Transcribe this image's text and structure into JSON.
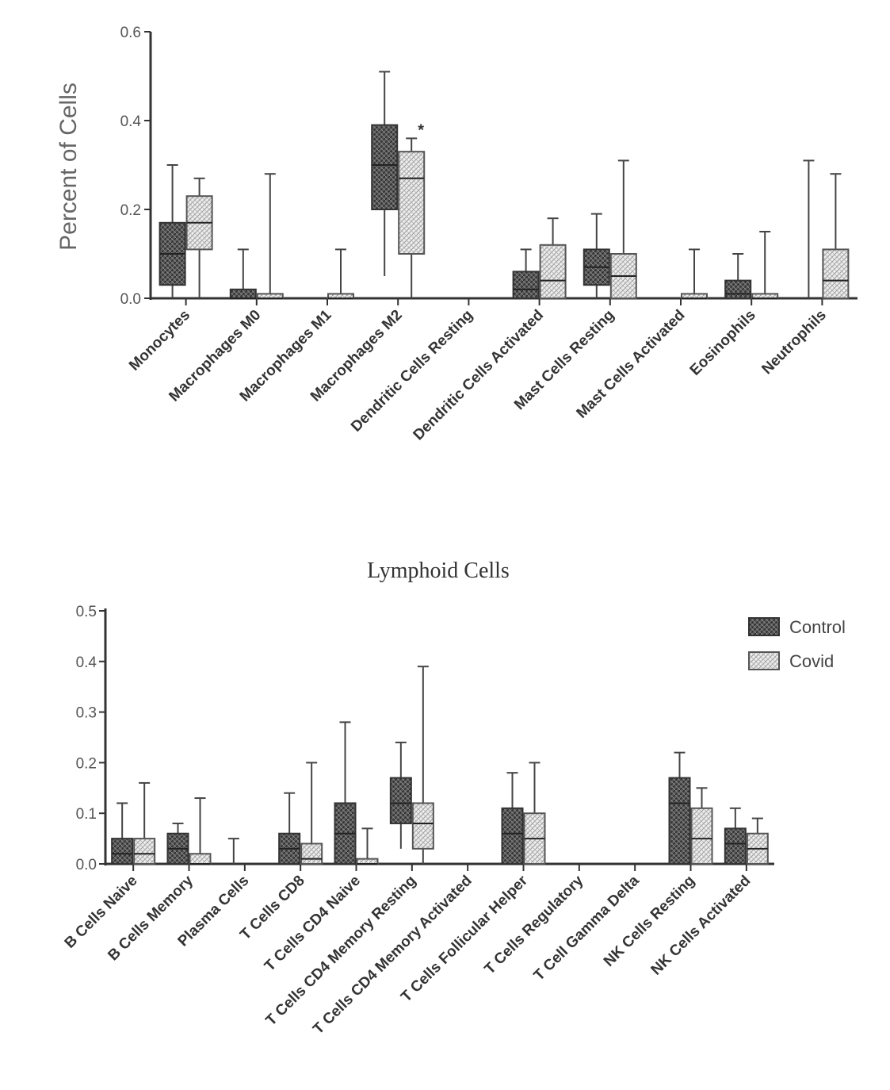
{
  "chart_data": [
    {
      "type": "box",
      "title": "",
      "xlabel": "",
      "ylabel": "Percent of Cells",
      "ylim": [
        0,
        0.6
      ],
      "yticks": [
        "0.0",
        "0.2",
        "0.4",
        "0.6"
      ],
      "ytick_values": [
        0,
        0.2,
        0.4,
        0.6
      ],
      "categories": [
        "Monocytes",
        "Macrophages M0",
        "Macrophages M1",
        "Macrophages M2",
        "Dendritic Cells Resting",
        "Dendritic Cells Activated",
        "Mast Cells Resting",
        "Mast Cells Activated",
        "Eosinophils",
        "Neutrophils"
      ],
      "series": [
        {
          "name": "Control",
          "boxes": [
            {
              "min": 0.0,
              "q1": 0.03,
              "median": 0.1,
              "q3": 0.17,
              "max": 0.3
            },
            {
              "min": 0.0,
              "q1": 0.0,
              "median": 0.0,
              "q3": 0.02,
              "max": 0.11
            },
            {
              "min": 0.0,
              "q1": 0.0,
              "median": 0.0,
              "q3": 0.0,
              "max": 0.0
            },
            {
              "min": 0.05,
              "q1": 0.2,
              "median": 0.3,
              "q3": 0.39,
              "max": 0.51
            },
            {
              "min": 0.0,
              "q1": 0.0,
              "median": 0.0,
              "q3": 0.0,
              "max": 0.0
            },
            {
              "min": 0.0,
              "q1": 0.0,
              "median": 0.02,
              "q3": 0.06,
              "max": 0.11
            },
            {
              "min": 0.0,
              "q1": 0.03,
              "median": 0.07,
              "q3": 0.11,
              "max": 0.19
            },
            {
              "min": 0.0,
              "q1": 0.0,
              "median": 0.0,
              "q3": 0.0,
              "max": 0.0
            },
            {
              "min": 0.0,
              "q1": 0.0,
              "median": 0.01,
              "q3": 0.04,
              "max": 0.1
            },
            {
              "min": 0.0,
              "q1": 0.0,
              "median": 0.0,
              "q3": 0.0,
              "max": 0.31
            }
          ]
        },
        {
          "name": "Covid",
          "boxes": [
            {
              "min": 0.0,
              "q1": 0.11,
              "median": 0.17,
              "q3": 0.23,
              "max": 0.27
            },
            {
              "min": 0.0,
              "q1": 0.0,
              "median": 0.0,
              "q3": 0.01,
              "max": 0.28
            },
            {
              "min": 0.0,
              "q1": 0.0,
              "median": 0.0,
              "q3": 0.01,
              "max": 0.11
            },
            {
              "min": 0.0,
              "q1": 0.1,
              "median": 0.27,
              "q3": 0.33,
              "max": 0.36
            },
            {
              "min": 0.0,
              "q1": 0.0,
              "median": 0.0,
              "q3": 0.0,
              "max": 0.0
            },
            {
              "min": 0.0,
              "q1": 0.0,
              "median": 0.04,
              "q3": 0.12,
              "max": 0.18
            },
            {
              "min": 0.0,
              "q1": 0.0,
              "median": 0.05,
              "q3": 0.1,
              "max": 0.31
            },
            {
              "min": 0.0,
              "q1": 0.0,
              "median": 0.0,
              "q3": 0.01,
              "max": 0.11
            },
            {
              "min": 0.0,
              "q1": 0.0,
              "median": 0.0,
              "q3": 0.01,
              "max": 0.15
            },
            {
              "min": 0.0,
              "q1": 0.0,
              "median": 0.04,
              "q3": 0.11,
              "max": 0.28
            }
          ]
        }
      ],
      "annotations": [
        {
          "category": "Macrophages M2",
          "series": "Covid",
          "text": "*"
        }
      ]
    },
    {
      "type": "box",
      "title": "Lymphoid Cells",
      "xlabel": "",
      "ylabel": "",
      "ylim": [
        0,
        0.5
      ],
      "yticks": [
        "0.0",
        "0.1",
        "0.2",
        "0.3",
        "0.4",
        "0.5"
      ],
      "ytick_values": [
        0,
        0.1,
        0.2,
        0.3,
        0.4,
        0.5
      ],
      "legend": {
        "position": "top-right",
        "entries": [
          "Control",
          "Covid"
        ]
      },
      "categories": [
        "B Cells Naive",
        "B Cells Memory",
        "Plasma Cells",
        "T Cells CD8",
        "T Cells CD4 Naive",
        "T Cells CD4 Memory Resting",
        "T Cells CD4 Memory Activated",
        "T Cells Follicular Helper",
        "T Cells Regulatory",
        "T Cell Gamma Delta",
        "NK Cells Resting",
        "NK Cells Activated"
      ],
      "series": [
        {
          "name": "Control",
          "boxes": [
            {
              "min": 0.0,
              "q1": 0.0,
              "median": 0.02,
              "q3": 0.05,
              "max": 0.12
            },
            {
              "min": 0.0,
              "q1": 0.0,
              "median": 0.03,
              "q3": 0.06,
              "max": 0.08
            },
            {
              "min": 0.0,
              "q1": 0.0,
              "median": 0.0,
              "q3": 0.0,
              "max": 0.05
            },
            {
              "min": 0.0,
              "q1": 0.0,
              "median": 0.03,
              "q3": 0.06,
              "max": 0.14
            },
            {
              "min": 0.0,
              "q1": 0.0,
              "median": 0.06,
              "q3": 0.12,
              "max": 0.28
            },
            {
              "min": 0.03,
              "q1": 0.08,
              "median": 0.12,
              "q3": 0.17,
              "max": 0.24
            },
            {
              "min": 0.0,
              "q1": 0.0,
              "median": 0.0,
              "q3": 0.0,
              "max": 0.0
            },
            {
              "min": 0.0,
              "q1": 0.0,
              "median": 0.06,
              "q3": 0.11,
              "max": 0.18
            },
            {
              "min": 0.0,
              "q1": 0.0,
              "median": 0.0,
              "q3": 0.0,
              "max": 0.0
            },
            {
              "min": 0.0,
              "q1": 0.0,
              "median": 0.0,
              "q3": 0.0,
              "max": 0.0
            },
            {
              "min": 0.0,
              "q1": 0.0,
              "median": 0.12,
              "q3": 0.17,
              "max": 0.22
            },
            {
              "min": 0.0,
              "q1": 0.0,
              "median": 0.04,
              "q3": 0.07,
              "max": 0.11
            }
          ]
        },
        {
          "name": "Covid",
          "boxes": [
            {
              "min": 0.0,
              "q1": 0.0,
              "median": 0.02,
              "q3": 0.05,
              "max": 0.16
            },
            {
              "min": 0.0,
              "q1": 0.0,
              "median": 0.0,
              "q3": 0.02,
              "max": 0.13
            },
            {
              "min": 0.0,
              "q1": 0.0,
              "median": 0.0,
              "q3": 0.0,
              "max": 0.0
            },
            {
              "min": 0.0,
              "q1": 0.0,
              "median": 0.01,
              "q3": 0.04,
              "max": 0.2
            },
            {
              "min": 0.0,
              "q1": 0.0,
              "median": 0.0,
              "q3": 0.01,
              "max": 0.07
            },
            {
              "min": 0.0,
              "q1": 0.03,
              "median": 0.08,
              "q3": 0.12,
              "max": 0.39
            },
            {
              "min": 0.0,
              "q1": 0.0,
              "median": 0.0,
              "q3": 0.0,
              "max": 0.0
            },
            {
              "min": 0.0,
              "q1": 0.0,
              "median": 0.05,
              "q3": 0.1,
              "max": 0.2
            },
            {
              "min": 0.0,
              "q1": 0.0,
              "median": 0.0,
              "q3": 0.0,
              "max": 0.0
            },
            {
              "min": 0.0,
              "q1": 0.0,
              "median": 0.0,
              "q3": 0.0,
              "max": 0.0
            },
            {
              "min": 0.0,
              "q1": 0.0,
              "median": 0.05,
              "q3": 0.11,
              "max": 0.15
            },
            {
              "min": 0.0,
              "q1": 0.0,
              "median": 0.03,
              "q3": 0.06,
              "max": 0.09
            }
          ]
        }
      ]
    }
  ]
}
